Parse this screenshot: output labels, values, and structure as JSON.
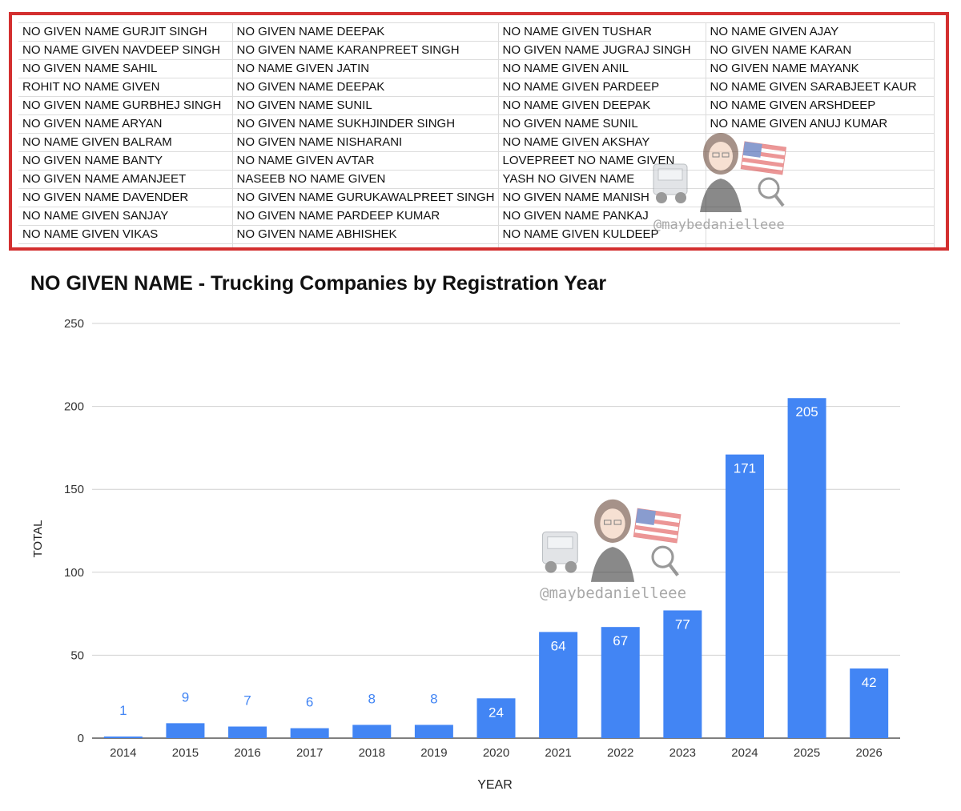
{
  "table": {
    "rows": [
      [
        "NO GIVEN NAME GURJIT SINGH",
        "NO GIVEN NAME DEEPAK",
        "NO NAME GIVEN TUSHAR",
        "NO NAME GIVEN AJAY"
      ],
      [
        "NO NAME GIVEN NAVDEEP SINGH",
        "NO GIVEN NAME KARANPREET SINGH",
        "NO GIVEN NAME JUGRAJ SINGH",
        "NO GIVEN NAME KARAN"
      ],
      [
        "NO GIVEN NAME SAHIL",
        "NO NAME GIVEN JATIN",
        "NO NAME GIVEN ANIL",
        "NO GIVEN NAME MAYANK"
      ],
      [
        "ROHIT NO NAME GIVEN",
        "NO GIVEN NAME DEEPAK",
        "NO NAME GIVEN PARDEEP",
        "NO NAME GIVEN SARABJEET KAUR"
      ],
      [
        "NO GIVEN NAME GURBHEJ SINGH",
        "NO GIVEN NAME SUNIL",
        "NO NAME GIVEN DEEPAK",
        "NO NAME GIVEN ARSHDEEP"
      ],
      [
        "NO GIVEN NAME ARYAN",
        "NO GIVEN NAME SUKHJINDER SINGH",
        "NO GIVEN NAME SUNIL",
        "NO NAME GIVEN ANUJ KUMAR"
      ],
      [
        "NO NAME GIVEN BALRAM",
        "NO GIVEN NAME NISHARANI",
        "NO NAME GIVEN AKSHAY",
        ""
      ],
      [
        "NO GIVEN NAME BANTY",
        "NO NAME GIVEN AVTAR",
        "LOVEPREET NO NAME GIVEN",
        ""
      ],
      [
        "NO GIVEN NAME AMANJEET",
        "NASEEB NO NAME GIVEN",
        "YASH NO GIVEN NAME",
        ""
      ],
      [
        "NO GIVEN NAME DAVENDER",
        "NO GIVEN NAME GURUKAWALPREET SINGH",
        "NO GIVEN NAME MANISH",
        ""
      ],
      [
        "NO NAME GIVEN SANJAY",
        "NO GIVEN NAME PARDEEP KUMAR",
        "NO GIVEN NAME PANKAJ",
        ""
      ],
      [
        "NO NAME GIVEN VIKAS",
        "NO GIVEN NAME ABHISHEK",
        "NO NAME GIVEN KULDEEP",
        ""
      ]
    ]
  },
  "watermark": {
    "handle": "@maybedanielleee",
    "icon": "trucker-avatar-flag-icon"
  },
  "colors": {
    "bar": "#4285f4",
    "label_outside": "#4285f4",
    "label_inside": "#ffffff",
    "grid": "#d0d0d0",
    "frame": "#d32f2f"
  },
  "chart_data": {
    "type": "bar",
    "title": "NO GIVEN NAME - Trucking Companies by Registration Year",
    "xlabel": "YEAR",
    "ylabel": "TOTAL",
    "categories": [
      "2014",
      "2015",
      "2016",
      "2017",
      "2018",
      "2019",
      "2020",
      "2021",
      "2022",
      "2023",
      "2024",
      "2025",
      "2026"
    ],
    "values": [
      1,
      9,
      7,
      6,
      8,
      8,
      24,
      64,
      67,
      77,
      171,
      205,
      42
    ],
    "yticks": [
      0,
      50,
      100,
      150,
      200,
      250
    ],
    "ylim": [
      0,
      250
    ],
    "grid": true,
    "legend": "none"
  }
}
